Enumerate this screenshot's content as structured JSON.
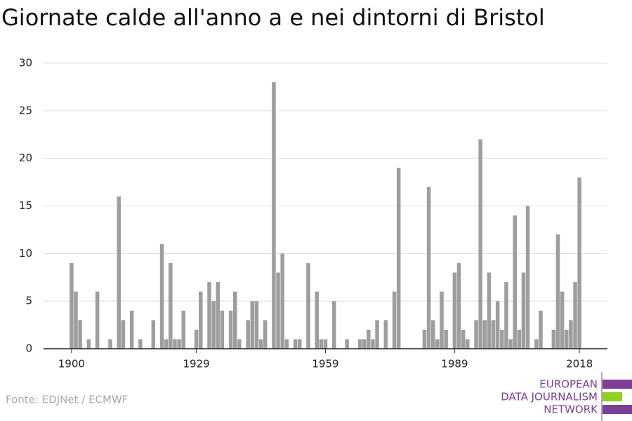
{
  "chart_data": {
    "type": "bar",
    "title": "Giornate calde all'anno a e nei dintorni di Bristol",
    "x": [
      1900,
      1901,
      1902,
      1903,
      1904,
      1905,
      1906,
      1907,
      1908,
      1909,
      1910,
      1911,
      1912,
      1913,
      1914,
      1915,
      1916,
      1917,
      1918,
      1919,
      1920,
      1921,
      1922,
      1923,
      1924,
      1925,
      1926,
      1927,
      1928,
      1929,
      1930,
      1931,
      1932,
      1933,
      1934,
      1935,
      1936,
      1937,
      1938,
      1939,
      1940,
      1941,
      1942,
      1943,
      1944,
      1945,
      1946,
      1947,
      1948,
      1949,
      1950,
      1951,
      1952,
      1953,
      1954,
      1955,
      1956,
      1957,
      1958,
      1959,
      1960,
      1961,
      1962,
      1963,
      1964,
      1965,
      1966,
      1967,
      1968,
      1969,
      1970,
      1971,
      1972,
      1973,
      1974,
      1975,
      1976,
      1977,
      1978,
      1979,
      1980,
      1981,
      1982,
      1983,
      1984,
      1985,
      1986,
      1987,
      1988,
      1989,
      1990,
      1991,
      1992,
      1993,
      1994,
      1995,
      1996,
      1997,
      1998,
      1999,
      2000,
      2001,
      2002,
      2003,
      2004,
      2005,
      2006,
      2007,
      2008,
      2009,
      2010,
      2011,
      2012,
      2013,
      2014,
      2015,
      2016,
      2017,
      2018
    ],
    "values": [
      9,
      6,
      3,
      0,
      1,
      0,
      6,
      0,
      0,
      1,
      0,
      16,
      3,
      0,
      4,
      0,
      1,
      0,
      0,
      3,
      0,
      11,
      1,
      9,
      1,
      1,
      4,
      0,
      0,
      2,
      6,
      0,
      7,
      5,
      7,
      4,
      0,
      4,
      6,
      1,
      0,
      3,
      5,
      5,
      1,
      3,
      0,
      28,
      8,
      10,
      1,
      0,
      1,
      1,
      0,
      9,
      0,
      6,
      1,
      1,
      0,
      5,
      0,
      0,
      1,
      0,
      0,
      1,
      1,
      2,
      1,
      3,
      0,
      3,
      0,
      6,
      19,
      0,
      0,
      0,
      0,
      0,
      2,
      17,
      3,
      1,
      6,
      2,
      0,
      8,
      9,
      2,
      1,
      0,
      3,
      22,
      3,
      8,
      3,
      5,
      2,
      7,
      1,
      14,
      2,
      8,
      15,
      0,
      1,
      4,
      0,
      0,
      2,
      12,
      6,
      2,
      3,
      7,
      18
    ],
    "color": "#9e9e9e",
    "xlim": [
      1893.5,
      2024.5
    ],
    "xticks": [
      1900,
      1929,
      1959,
      1989,
      2018
    ],
    "ylim": [
      0,
      30
    ],
    "yticks": [
      0,
      5,
      10,
      15,
      20,
      25,
      30
    ],
    "grid": true,
    "source": "Fonte: EDJNet / ECMWF",
    "logo": [
      "EUROPEAN",
      "DATA JOURNALISM",
      "NETWORK"
    ]
  }
}
